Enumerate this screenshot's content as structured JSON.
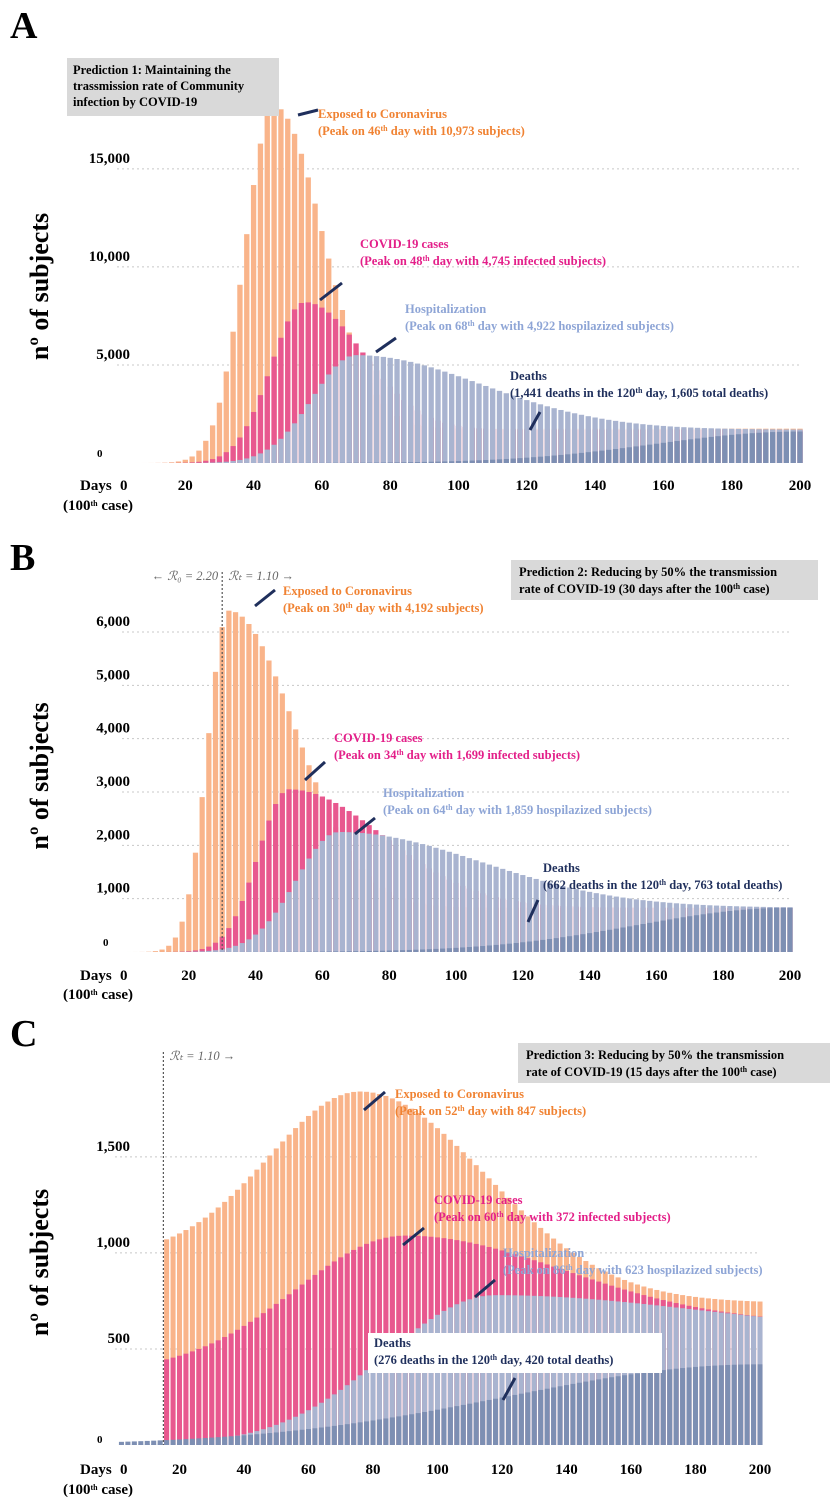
{
  "colors": {
    "exposed": "#f9b48a",
    "cases": "#e8588f",
    "hospital": "#a9b4d0",
    "deaths": "#7d8fb3",
    "exposed_text": "#f08232",
    "cases_text": "#e31f89",
    "hospital_text": "#8ea5d6",
    "deaths_text": "#1f2f5c"
  },
  "common": {
    "ylabel": "nº of subjects",
    "days_label": "Days",
    "hundredth_case": "(100",
    "th": "th",
    "case_suffix": " case)",
    "zero": "0"
  },
  "chart_data": [
    {
      "panel": "A",
      "type": "bar",
      "title_lines": [
        "Prediction 1: Maintaining  the",
        "trassmission rate of Community",
        "infection by COVID-19"
      ],
      "xlim": [
        0,
        200
      ],
      "ylim": [
        0,
        18000
      ],
      "xticks": [
        20,
        40,
        60,
        80,
        100,
        120,
        140,
        160,
        180,
        200
      ],
      "yticks": [
        5000,
        10000,
        15000
      ],
      "ytick_labels": [
        "5,000",
        "10,000",
        "15,000"
      ],
      "series": [
        {
          "key": "exposed",
          "name": "Exposed to Coronavirus",
          "peak_day": 46,
          "peak_value": 10973,
          "t_start": 0,
          "start": 0,
          "pk_day": 46,
          "pk": 18200,
          "end": 1750,
          "wl": 12,
          "wr": 20
        },
        {
          "key": "cases",
          "name": "COVID-19 cases",
          "peak_day": 48,
          "peak_value": 4745,
          "t_start": 0,
          "start": 0,
          "pk_day": 55,
          "pk": 8200,
          "end": 1700,
          "wl": 14,
          "wr": 24
        },
        {
          "key": "hospital",
          "name": "Hospitalization",
          "peak_day": 68,
          "peak_value": 4922,
          "t_start": 0,
          "start": 0,
          "pk_day": 70,
          "pk": 5500,
          "end": 1700,
          "wl": 18,
          "wr": 52
        },
        {
          "key": "deaths",
          "name": "Deaths",
          "deaths_120": 1441,
          "total_deaths": 1605,
          "t_start": 0,
          "start": 0,
          "pk_day": 200,
          "pk": 1605,
          "end": 1605,
          "wl": 60,
          "wr": 10
        }
      ],
      "annotations": {
        "exposed": [
          "Exposed to Coronavirus",
          "(Peak on 46",
          "th",
          " day with 10,973 subjects)"
        ],
        "cases": [
          "COVID-19 cases",
          "(Peak on 48",
          "th",
          " day with 4,745 infected subjects)"
        ],
        "hospital": [
          "Hospitalization",
          "(Peak on 68",
          "th",
          " day with 4,922 hospilazized  subjects)"
        ],
        "deaths": [
          "Deaths",
          "(1,441 deaths in the 120",
          "th",
          " day, 1,605 total deaths)"
        ]
      }
    },
    {
      "panel": "B",
      "type": "bar",
      "title_lines": [
        "Prediction 2: Reducing by 50% the transmission",
        "rate of COVID-19  (30 days after the 100",
        "th",
        " case)"
      ],
      "r0_label": "← ℛ₀ = 2.20",
      "rt_label": "ℛₜ = 1.10 →",
      "intervention_day": 30,
      "xlim": [
        0,
        200
      ],
      "ylim": [
        0,
        6600
      ],
      "xticks": [
        20,
        40,
        60,
        80,
        100,
        120,
        140,
        160,
        180,
        200
      ],
      "yticks": [
        1000,
        2000,
        3000,
        4000,
        5000,
        6000
      ],
      "ytick_labels": [
        "1,000",
        "2,000",
        "3,000",
        "4,000",
        "5,000",
        "6,000"
      ],
      "series": [
        {
          "key": "exposed",
          "name": "Exposed to Coronavirus",
          "peak_day": 30,
          "peak_value": 4192,
          "t_start": 0,
          "start": 0,
          "pk_day": 32,
          "pk": 6400,
          "end": 830,
          "wl": 9,
          "wr": 28
        },
        {
          "key": "cases",
          "name": "COVID-19 cases",
          "peak_day": 34,
          "peak_value": 1699,
          "t_start": 0,
          "start": 0,
          "pk_day": 50,
          "pk": 3050,
          "end": 830,
          "wl": 13,
          "wr": 40
        },
        {
          "key": "hospital",
          "name": "Hospitalization",
          "peak_day": 64,
          "peak_value": 1859,
          "t_start": 0,
          "start": 0,
          "pk_day": 65,
          "pk": 2250,
          "end": 830,
          "wl": 18,
          "wr": 60
        },
        {
          "key": "deaths",
          "name": "Deaths",
          "deaths_120": 662,
          "total_deaths": 763,
          "t_start": 0,
          "start": 0,
          "pk_day": 200,
          "pk": 830,
          "end": 830,
          "wl": 65,
          "wr": 10
        }
      ],
      "annotations": {
        "exposed": [
          "Exposed to Coronavirus",
          "(Peak on 30",
          "th",
          " day with 4,192 subjects)"
        ],
        "cases": [
          "COVID-19 cases",
          "(Peak on 34",
          "th",
          " day with 1,699 infected subjects)"
        ],
        "hospital": [
          "Hospitalization",
          "(Peak on 64",
          "th",
          " day with 1,859 hospilazized  subjects)"
        ],
        "deaths": [
          "Deaths",
          "(662 deaths in the 120",
          "th",
          " day, 763 total deaths)"
        ]
      }
    },
    {
      "panel": "C",
      "type": "bar",
      "title_lines": [
        "Prediction 3: Reducing by 50% the transmission",
        "rate of COVID-19  (15 days after the 100",
        "th",
        " case)"
      ],
      "rt_label": "ℛₜ = 1.10 →",
      "intervention_day": 15,
      "xlim": [
        0,
        200
      ],
      "ylim": [
        0,
        1900
      ],
      "xticks": [
        20,
        40,
        60,
        80,
        100,
        120,
        140,
        160,
        180,
        200
      ],
      "yticks": [
        500,
        1000,
        1500
      ],
      "ytick_labels": [
        "500",
        "1,000",
        "1,500"
      ],
      "series": [
        {
          "key": "exposed",
          "name": "Exposed to Coronavirus",
          "peak_day": 52,
          "peak_value": 847,
          "t_start": 15,
          "start": 980,
          "pk_day": 76,
          "pk": 1840,
          "end": 740,
          "wl": 40,
          "wr": 55
        },
        {
          "key": "cases",
          "name": "COVID-19 cases",
          "peak_day": 60,
          "peak_value": 372,
          "t_start": 15,
          "start": 380,
          "pk_day": 90,
          "pk": 1090,
          "end": 630,
          "wl": 48,
          "wr": 70
        },
        {
          "key": "hospital",
          "name": "Hospitalization",
          "peak_day": 86,
          "peak_value": 623,
          "t_start": 0,
          "start": 0,
          "pk_day": 118,
          "pk": 780,
          "end": 580,
          "wl": 48,
          "wr": 90
        },
        {
          "key": "deaths",
          "name": "Deaths",
          "deaths_120": 276,
          "total_deaths": 420,
          "t_start": 0,
          "start": 0,
          "pk_day": 200,
          "pk": 420,
          "end": 420,
          "wl": 110,
          "wr": 10
        }
      ],
      "annotations": {
        "exposed": [
          "Exposed to Coronavirus",
          "(Peak on 52",
          "th",
          " day with 847 subjects)"
        ],
        "cases": [
          "COVID-19 cases",
          "(Peak on 60",
          "th",
          " day with 372 infected subjects)"
        ],
        "hospital": [
          "Hospitalization",
          "(Peak on 86",
          "th",
          " day with 623 hospilazized  subjects)"
        ],
        "deaths": [
          "Deaths",
          "(276 deaths in the 120",
          "th",
          " day, 420 total deaths)"
        ]
      }
    }
  ]
}
